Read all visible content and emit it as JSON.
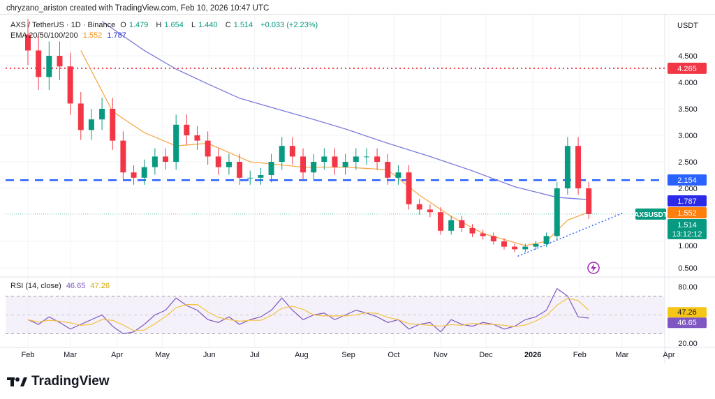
{
  "credit": "chryzano_ariston created with TradingView.com, Feb 10, 2026 10:47 UTC",
  "legend": {
    "symbol": "AXS / TetherUS · 1D · Binance",
    "o_label": "O",
    "o": "1.479",
    "h_label": "H",
    "h": "1.654",
    "l_label": "L",
    "l": "1.440",
    "c_label": "C",
    "c": "1.514",
    "change": "+0.033 (+2.23%)",
    "ema_label": "EMA 20/50/100/200",
    "ema50": "1.552",
    "ema200": "1.787",
    "rsi_label": "RSI (14, close)",
    "rsi": "46.65",
    "rsi_ma": "47.26"
  },
  "currency": "USDT",
  "brand": "TradingView",
  "colors": {
    "up": "#089981",
    "down": "#f23645",
    "ema50": "#f7a94a",
    "ema200": "#7b7bdc",
    "resistance": "#f23645",
    "support": "#2962ff",
    "rsi": "#7e57c2",
    "rsi_ma": "#f5c242",
    "band": "#ede7f6"
  },
  "chart_data": [
    {
      "type": "candlestick",
      "symbol_tag": "AXSUSDT",
      "last_price": "1.514",
      "countdown": "13:12:12",
      "ylim": [
        0.4,
        5.2
      ],
      "y_ticks": [
        "4.500",
        "4.000",
        "3.500",
        "3.000",
        "2.500",
        "2.000",
        "1.000",
        "0.500"
      ],
      "x_ticks": [
        "Feb",
        "Mar",
        "Apr",
        "May",
        "Jun",
        "Jul",
        "Aug",
        "Sep",
        "Oct",
        "Nov",
        "Dec",
        "2026",
        "Feb",
        "Mar",
        "Apr"
      ],
      "x_tick_dates": [
        "2025-02-01",
        "2025-03-01",
        "2025-04-01",
        "2025-05-01",
        "2025-06-01",
        "2025-07-01",
        "2025-08-01",
        "2025-09-01",
        "2025-10-01",
        "2025-11-01",
        "2025-12-01",
        "2026-01-01",
        "2026-02-01",
        "2026-03-01",
        "2026-04-01"
      ],
      "dates": [
        "2025-02-01",
        "2025-02-08",
        "2025-02-15",
        "2025-02-22",
        "2025-03-01",
        "2025-03-08",
        "2025-03-15",
        "2025-03-22",
        "2025-03-29",
        "2025-04-05",
        "2025-04-12",
        "2025-04-19",
        "2025-04-26",
        "2025-05-03",
        "2025-05-10",
        "2025-05-17",
        "2025-05-24",
        "2025-05-31",
        "2025-06-07",
        "2025-06-14",
        "2025-06-21",
        "2025-06-28",
        "2025-07-05",
        "2025-07-12",
        "2025-07-19",
        "2025-07-26",
        "2025-08-02",
        "2025-08-09",
        "2025-08-16",
        "2025-08-23",
        "2025-08-30",
        "2025-09-06",
        "2025-09-13",
        "2025-09-20",
        "2025-09-27",
        "2025-10-04",
        "2025-10-11",
        "2025-10-18",
        "2025-10-25",
        "2025-11-01",
        "2025-11-08",
        "2025-11-15",
        "2025-11-22",
        "2025-11-29",
        "2025-12-06",
        "2025-12-13",
        "2025-12-20",
        "2025-12-27",
        "2026-01-03",
        "2026-01-10",
        "2026-01-17",
        "2026-01-24",
        "2026-01-31",
        "2026-02-07"
      ],
      "close": [
        4.6,
        4.1,
        4.5,
        4.3,
        3.6,
        3.1,
        3.3,
        3.5,
        2.9,
        2.3,
        2.2,
        2.4,
        2.6,
        2.5,
        3.2,
        3.0,
        2.9,
        2.6,
        2.4,
        2.5,
        2.2,
        2.2,
        2.25,
        2.5,
        2.8,
        2.6,
        2.3,
        2.5,
        2.6,
        2.4,
        2.5,
        2.6,
        2.6,
        2.5,
        2.2,
        2.3,
        1.7,
        1.6,
        1.55,
        1.2,
        1.4,
        1.25,
        1.15,
        1.1,
        1.0,
        0.9,
        0.85,
        0.9,
        0.95,
        1.1,
        2.0,
        2.8,
        2.0,
        1.514
      ],
      "ema50": [
        [
          "2025-03-08",
          4.6
        ],
        [
          "2025-03-29",
          3.45
        ],
        [
          "2025-04-19",
          3.05
        ],
        [
          "2025-05-10",
          2.8
        ],
        [
          "2025-05-31",
          2.85
        ],
        [
          "2025-06-28",
          2.5
        ],
        [
          "2025-08-02",
          2.4
        ],
        [
          "2025-08-30",
          2.4
        ],
        [
          "2025-09-27",
          2.35
        ],
        [
          "2025-10-18",
          1.87
        ],
        [
          "2025-11-08",
          1.47
        ],
        [
          "2025-11-29",
          1.15
        ],
        [
          "2025-12-27",
          0.92
        ],
        [
          "2026-01-10",
          1.0
        ],
        [
          "2026-01-24",
          1.4
        ],
        [
          "2026-02-07",
          1.552
        ]
      ],
      "ema200": [
        [
          "2025-03-22",
          5.15
        ],
        [
          "2025-04-19",
          4.6
        ],
        [
          "2025-05-10",
          4.25
        ],
        [
          "2025-05-31",
          3.97
        ],
        [
          "2025-06-21",
          3.7
        ],
        [
          "2025-07-19",
          3.47
        ],
        [
          "2025-08-09",
          3.3
        ],
        [
          "2025-08-30",
          3.12
        ],
        [
          "2025-09-27",
          2.85
        ],
        [
          "2025-10-25",
          2.6
        ],
        [
          "2025-11-22",
          2.33
        ],
        [
          "2025-12-20",
          2.03
        ],
        [
          "2026-01-17",
          1.83
        ],
        [
          "2026-02-07",
          1.787
        ]
      ],
      "levels": [
        {
          "value": 4.265,
          "label": "4.265",
          "style": "dotted",
          "color": "#f23645"
        },
        {
          "value": 2.154,
          "label": "2.154",
          "style": "dashed",
          "color": "#2962ff"
        }
      ],
      "trendline": [
        [
          "2025-12-22",
          0.72
        ],
        [
          "2026-03-02",
          1.54
        ]
      ],
      "ema_labels": {
        "ema200": "1.787",
        "ema50": "1.552"
      }
    },
    {
      "type": "line",
      "name": "RSI (14, close)",
      "ylim": [
        10,
        90
      ],
      "y_ticks": [
        "80.00",
        "20.00"
      ],
      "band": [
        30,
        70
      ],
      "values": [
        45,
        40,
        48,
        42,
        35,
        40,
        45,
        50,
        38,
        30,
        32,
        40,
        50,
        55,
        68,
        60,
        55,
        45,
        42,
        48,
        40,
        45,
        48,
        55,
        68,
        55,
        45,
        50,
        52,
        45,
        50,
        55,
        52,
        48,
        42,
        45,
        35,
        40,
        42,
        32,
        45,
        40,
        38,
        42,
        40,
        35,
        38,
        45,
        48,
        55,
        78,
        70,
        48,
        46.65
      ],
      "ma_label": "47.26",
      "last_label": "46.65"
    }
  ]
}
